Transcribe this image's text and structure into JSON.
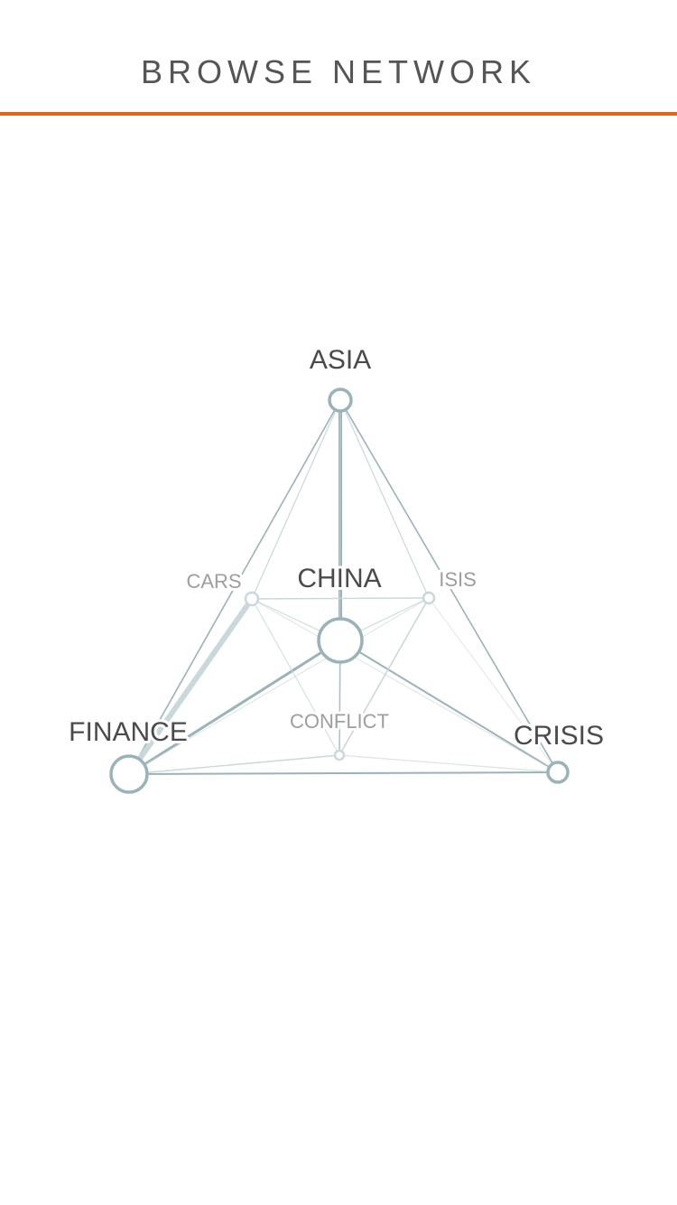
{
  "header": {
    "title": "BROWSE NETWORK"
  },
  "colors": {
    "accent": "#e0651e",
    "edge": "#9ab3b8",
    "edge_light": "#c9d8db",
    "node_stroke": "#9ab3b8",
    "label_primary": "#4a4a4a",
    "label_secondary": "#9e9e9e"
  },
  "network": {
    "nodes": [
      {
        "id": "asia",
        "label": "ASIA",
        "tier": "primary"
      },
      {
        "id": "china",
        "label": "CHINA",
        "tier": "primary"
      },
      {
        "id": "finance",
        "label": "FINANCE",
        "tier": "primary"
      },
      {
        "id": "crisis",
        "label": "CRISIS",
        "tier": "primary"
      },
      {
        "id": "cars",
        "label": "CARS",
        "tier": "secondary"
      },
      {
        "id": "isis",
        "label": "ISIS",
        "tier": "secondary"
      },
      {
        "id": "conflict",
        "label": "CONFLICT",
        "tier": "secondary"
      }
    ]
  }
}
